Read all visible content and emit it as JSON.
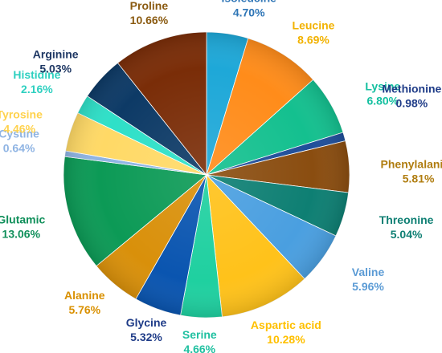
{
  "chart_data": {
    "type": "pie",
    "title": "",
    "slices": [
      {
        "label": "Isoleucine",
        "value": 4.7,
        "display": "4.70%",
        "color": "#1ea8d8",
        "label_color": "#2e75b6"
      },
      {
        "label": "Leucine",
        "value": 8.69,
        "display": "8.69%",
        "color": "#ff8c1a",
        "label_color": "#f2b200"
      },
      {
        "label": "Lysine",
        "value": 6.8,
        "display": "6.80%",
        "color": "#14c08f",
        "label_color": "#14c0a0"
      },
      {
        "label": "Methionine",
        "value": 0.98,
        "display": "0.98%",
        "color": "#1f4e9a",
        "label_color": "#1f3c88"
      },
      {
        "label": "Phenylalanine",
        "value": 5.81,
        "display": "5.81%",
        "color": "#8a4d10",
        "label_color": "#b07d10"
      },
      {
        "label": "Threonine",
        "value": 5.04,
        "display": "5.04%",
        "color": "#0e7f73",
        "label_color": "#0e7f73"
      },
      {
        "label": "Valine",
        "value": 5.96,
        "display": "5.96%",
        "color": "#4a9fe0",
        "label_color": "#5b9bd5"
      },
      {
        "label": "Aspartic acid",
        "value": 10.28,
        "display": "10.28%",
        "color": "#ffc21a",
        "label_color": "#ffc000"
      },
      {
        "label": "Serine",
        "value": 4.66,
        "display": "4.66%",
        "color": "#1fd0a0",
        "label_color": "#1fc0a0"
      },
      {
        "label": "Glycine",
        "value": 5.32,
        "display": "5.32%",
        "color": "#0a55b0",
        "label_color": "#1f3c88"
      },
      {
        "label": "Alanine",
        "value": 5.76,
        "display": "5.76%",
        "color": "#d9900a",
        "label_color": "#d99000"
      },
      {
        "label": "Glutamic",
        "value": 13.06,
        "display": "13.06%",
        "color": "#0c9a56",
        "label_color": "#0f8f5a"
      },
      {
        "label": "Cystine",
        "value": 0.64,
        "display": "0.64%",
        "color": "#8fb4e3",
        "label_color": "#8fb4e3"
      },
      {
        "label": "Tyrosine",
        "value": 4.46,
        "display": "4.46%",
        "color": "#ffd966",
        "label_color": "#ffd24d"
      },
      {
        "label": "Histidine",
        "value": 2.16,
        "display": "2.16%",
        "color": "#2ee0c8",
        "label_color": "#2ed0c0"
      },
      {
        "label": "Arginine",
        "value": 5.03,
        "display": "5.03%",
        "color": "#0d3a66",
        "label_color": "#1f3864"
      },
      {
        "label": "Proline",
        "value": 10.66,
        "display": "10.66%",
        "color": "#7a2d08",
        "label_color": "#8a5a10"
      }
    ]
  }
}
